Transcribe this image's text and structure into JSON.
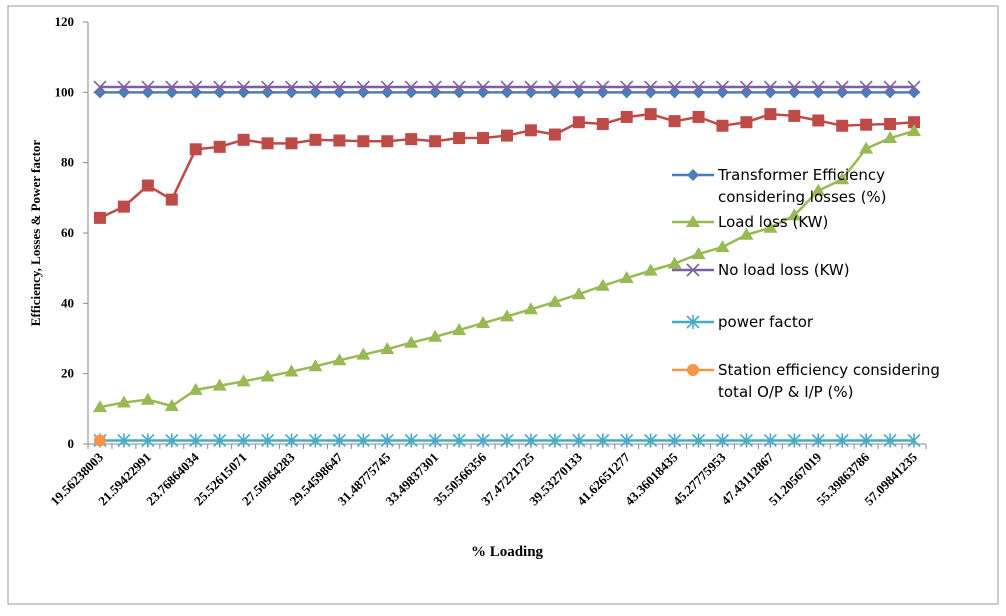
{
  "chart_data": {
    "type": "line",
    "xlabel": "% Loading",
    "ylabel": "Efficiency, Losses & Power factor",
    "categories": [
      "19.56238003",
      null,
      "21.59422991",
      null,
      "23.76864034",
      null,
      "25.52615071",
      null,
      "27.50964283",
      null,
      "29.54598647",
      null,
      "31.48775745",
      null,
      "33.49837301",
      null,
      "35.50566356",
      null,
      "37.47221725",
      null,
      "39.53270133",
      null,
      "41.62651277",
      null,
      "43.36018435",
      null,
      "45.27775953",
      null,
      "47.43112867",
      null,
      "51.20567019",
      null,
      "55.39863786",
      null,
      "57.09841235"
    ],
    "ylim": [
      0,
      120
    ],
    "yticks": [
      0,
      20,
      40,
      60,
      80,
      100,
      120
    ],
    "series": [
      {
        "name": "Transformer Efficiency considering losses (%)",
        "color": "#4a7ebb",
        "marker": "diamond",
        "values": [
          100,
          100,
          100,
          100,
          100,
          100,
          100,
          100,
          100,
          100,
          100,
          100,
          100,
          100,
          100,
          100,
          100,
          100,
          100,
          100,
          100,
          100,
          100,
          100,
          100,
          100,
          100,
          100,
          100,
          100,
          100,
          100,
          100,
          100,
          100
        ]
      },
      {
        "name": null,
        "color": "#be4b48",
        "marker": "square",
        "values": [
          64.3,
          67.5,
          73.5,
          69.5,
          83.8,
          84.5,
          86.5,
          85.5,
          85.5,
          86.5,
          86.3,
          86.1,
          86.1,
          86.7,
          86.1,
          87,
          87,
          87.7,
          89.2,
          88,
          91.5,
          91,
          93,
          93.8,
          91.8,
          93,
          90.5,
          91.5,
          93.8,
          93.3,
          92,
          90.5,
          90.8,
          91,
          91.5
        ]
      },
      {
        "name": "Load loss (KW)",
        "color": "#98b954",
        "marker": "triangle",
        "values": [
          10.5,
          11.8,
          12.6,
          10.8,
          15.4,
          16.6,
          17.8,
          19.2,
          20.6,
          22.1,
          23.8,
          25.4,
          27,
          28.8,
          30.5,
          32.4,
          34.4,
          36.3,
          38.3,
          40.4,
          42.6,
          45,
          47.2,
          49.3,
          51.3,
          54,
          56,
          59.5,
          61.5,
          65,
          72,
          75.3,
          84,
          87,
          89
        ]
      },
      {
        "name": "No load loss (KW)",
        "color": "#7d60a0",
        "marker": "x",
        "values": [
          101.5,
          101.5,
          101.5,
          101.5,
          101.5,
          101.5,
          101.5,
          101.5,
          101.5,
          101.5,
          101.5,
          101.5,
          101.5,
          101.5,
          101.5,
          101.5,
          101.5,
          101.5,
          101.5,
          101.5,
          101.5,
          101.5,
          101.5,
          101.5,
          101.5,
          101.5,
          101.5,
          101.5,
          101.5,
          101.5,
          101.5,
          101.5,
          101.5,
          101.5,
          101.5
        ]
      },
      {
        "name": "power factor",
        "color": "#46aac5",
        "marker": "star",
        "values": [
          1,
          1,
          1,
          1,
          1,
          1,
          1,
          1,
          1,
          1,
          1,
          1,
          1,
          1,
          1,
          1,
          1,
          1,
          1,
          1,
          1,
          1,
          1,
          1,
          1,
          1,
          1,
          1,
          1,
          1,
          1,
          1,
          1,
          1,
          1
        ]
      },
      {
        "name": "Station efficiency considering total O/P & I/P (%)",
        "color": "#f79646",
        "marker": "circle",
        "values": [
          1,
          null,
          null,
          null,
          null,
          null,
          null,
          null,
          null,
          null,
          null,
          null,
          null,
          null,
          null,
          null,
          null,
          null,
          null,
          null,
          null,
          null,
          null,
          null,
          null,
          null,
          null,
          null,
          null,
          null,
          null,
          null,
          null,
          null,
          null
        ]
      }
    ]
  }
}
